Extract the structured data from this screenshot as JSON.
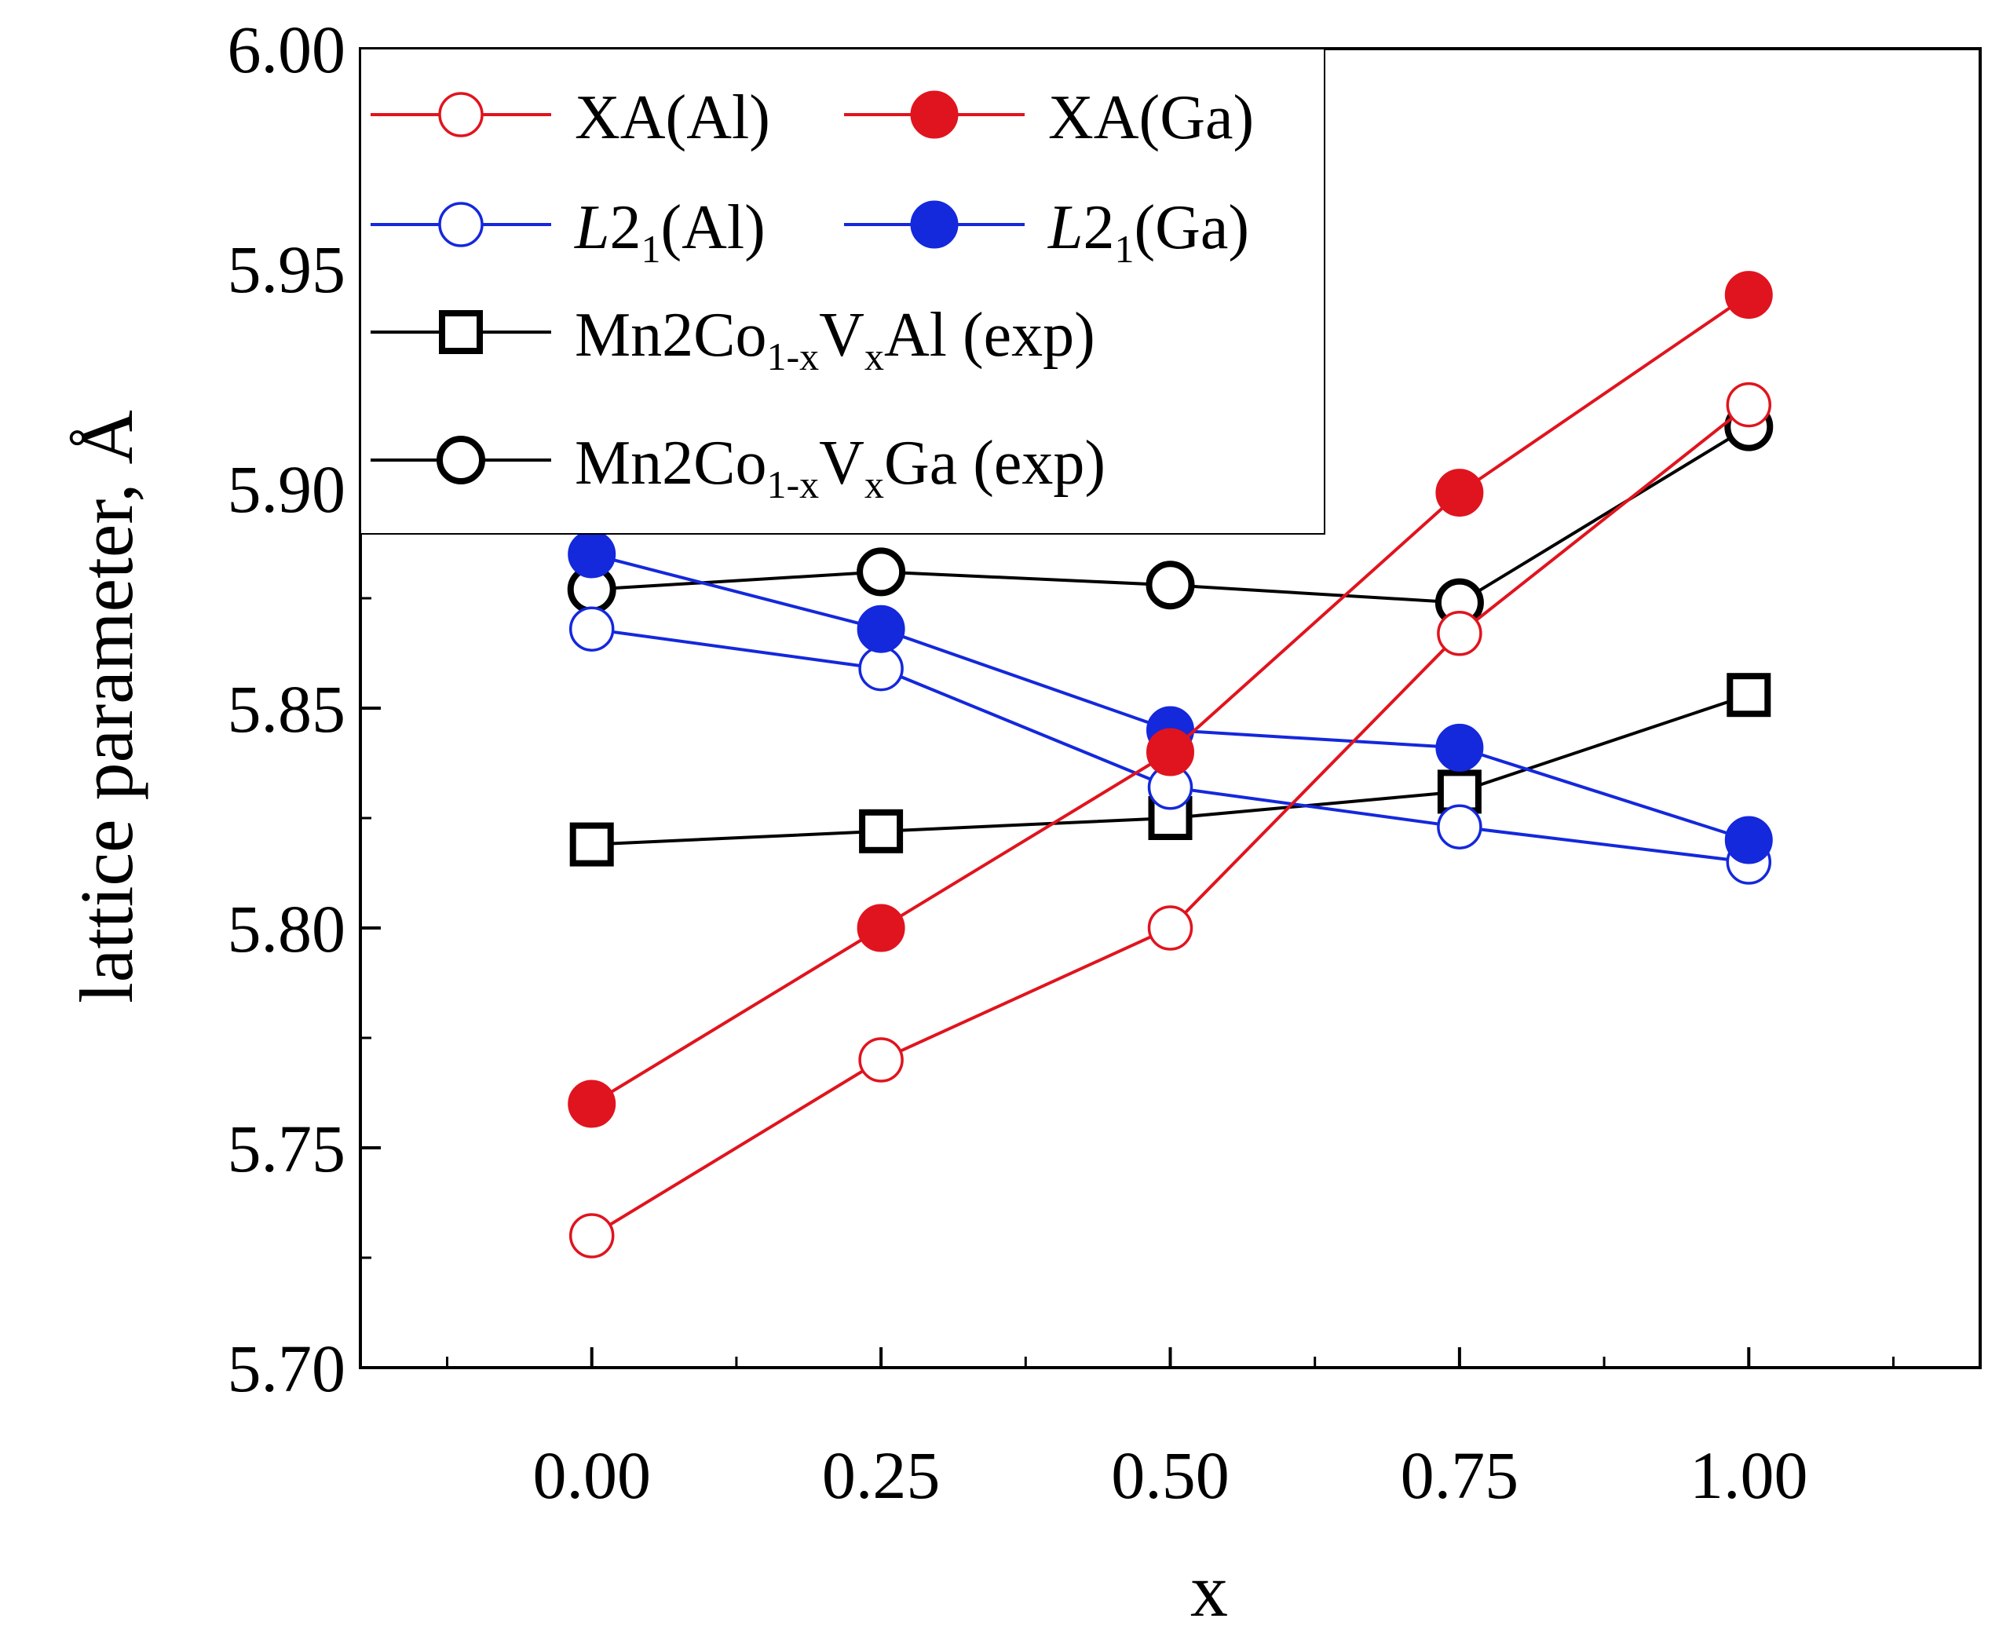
{
  "chart_data": {
    "type": "line",
    "xlabel": "x",
    "ylabel": "lattice parameter, Å",
    "xlim": [
      -0.2,
      1.2
    ],
    "ylim": [
      5.7,
      6.0
    ],
    "xticks": [
      0.0,
      0.25,
      0.5,
      0.75,
      1.0
    ],
    "xtick_labels": [
      "0.00",
      "0.25",
      "0.50",
      "0.75",
      "1.00"
    ],
    "yticks": [
      5.7,
      5.75,
      5.8,
      5.85,
      5.9,
      5.95,
      6.0
    ],
    "ytick_labels": [
      "5.70",
      "5.75",
      "5.80",
      "5.85",
      "5.90",
      "5.95",
      "6.00"
    ],
    "legend_position": "top-left",
    "series": [
      {
        "name": "XA(Al)",
        "color": "#e0141e",
        "marker": "circle",
        "filled": false,
        "x": [
          0.0,
          0.25,
          0.5,
          0.75,
          1.0
        ],
        "values": [
          5.73,
          5.77,
          5.8,
          5.867,
          5.919
        ]
      },
      {
        "name": "XA(Ga)",
        "color": "#e0141e",
        "marker": "circle",
        "filled": true,
        "x": [
          0.0,
          0.25,
          0.5,
          0.75,
          1.0
        ],
        "values": [
          5.76,
          5.8,
          5.84,
          5.899,
          5.944
        ]
      },
      {
        "name": "L2_1(Al)",
        "color": "#1428dc",
        "marker": "circle",
        "filled": false,
        "x": [
          0.0,
          0.25,
          0.5,
          0.75,
          1.0
        ],
        "values": [
          5.868,
          5.859,
          5.832,
          5.823,
          5.815
        ]
      },
      {
        "name": "L2_1(Ga)",
        "color": "#1428dc",
        "marker": "circle",
        "filled": true,
        "x": [
          0.0,
          0.25,
          0.5,
          0.75,
          1.0
        ],
        "values": [
          5.885,
          5.868,
          5.845,
          5.841,
          5.82
        ]
      },
      {
        "name": "Mn2Co1-xVxAl (exp)",
        "color": "#000000",
        "marker": "square",
        "filled": false,
        "x": [
          0.0,
          0.25,
          0.5,
          0.75,
          1.0
        ],
        "values": [
          5.819,
          5.822,
          5.825,
          5.831,
          5.853
        ]
      },
      {
        "name": "Mn2Co1-xVxGa (exp)",
        "color": "#000000",
        "marker": "circle-thick",
        "filled": false,
        "x": [
          0.0,
          0.25,
          0.5,
          0.75,
          1.0
        ],
        "values": [
          5.877,
          5.881,
          5.878,
          5.874,
          5.914
        ]
      }
    ],
    "legend": {
      "xa_al": "XA(Al)",
      "xa_ga": "XA(Ga)",
      "l21_al_italic": "L",
      "l21_al_main": "2",
      "l21_al_sub": "1",
      "l21_al_tail": "(Al)",
      "l21_ga_italic": "L",
      "l21_ga_main": "2",
      "l21_ga_sub": "1",
      "l21_ga_tail": "(Ga)",
      "exp_al_a": "Mn2Co",
      "exp_al_sub1": "1-x",
      "exp_al_b": "V",
      "exp_al_sub2": "x",
      "exp_al_c": "Al (exp)",
      "exp_ga_a": "Mn2Co",
      "exp_ga_sub1": "1-x",
      "exp_ga_b": "V",
      "exp_ga_sub2": "x",
      "exp_ga_c": "Ga (exp)"
    }
  }
}
